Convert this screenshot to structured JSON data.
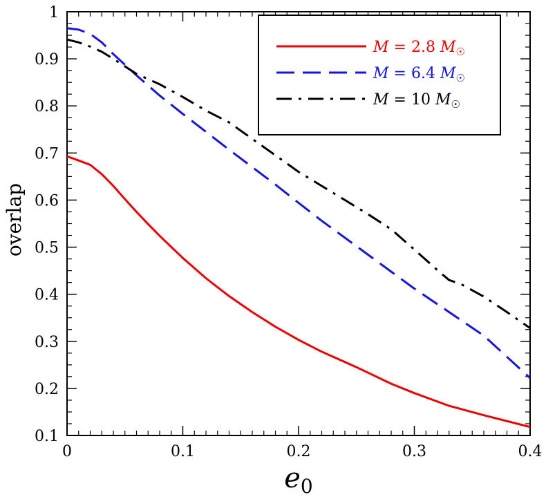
{
  "chart_data": {
    "type": "line",
    "xlabel": "e",
    "xlabel_sub": "0",
    "ylabel": "overlap",
    "xlim": [
      0,
      0.4
    ],
    "ylim": [
      0.1,
      1.0
    ],
    "xticks": [
      0,
      0.1,
      0.2,
      0.3,
      0.4
    ],
    "xtick_labels": [
      "0",
      "0.1",
      "0.2",
      "0.3",
      "0.4"
    ],
    "yticks": [
      0.1,
      0.2,
      0.3,
      0.4,
      0.5,
      0.6,
      0.7,
      0.8,
      0.9,
      1.0
    ],
    "ytick_labels": [
      "0.1",
      "0.2",
      "0.3",
      "0.4",
      "0.5",
      "0.6",
      "0.7",
      "0.8",
      "0.9",
      "1"
    ],
    "grid": false,
    "legend_position": "top-right",
    "series": [
      {
        "name": "M = 2.8 M☉",
        "legend_parts": {
          "lhs": "M",
          "eq": " = 2.8 ",
          "unit": "M",
          "sun": "☉"
        },
        "color": "#ee0000",
        "dash": "solid",
        "x": [
          0,
          0.01,
          0.02,
          0.03,
          0.04,
          0.05,
          0.06,
          0.07,
          0.08,
          0.1,
          0.12,
          0.14,
          0.16,
          0.18,
          0.2,
          0.22,
          0.25,
          0.28,
          0.3,
          0.33,
          0.36,
          0.4
        ],
        "y": [
          0.693,
          0.684,
          0.675,
          0.655,
          0.63,
          0.602,
          0.575,
          0.549,
          0.524,
          0.477,
          0.434,
          0.396,
          0.362,
          0.331,
          0.303,
          0.278,
          0.245,
          0.21,
          0.19,
          0.163,
          0.143,
          0.118
        ]
      },
      {
        "name": "M = 6.4 M☉",
        "legend_parts": {
          "lhs": "M",
          "eq": " = 6.4 ",
          "unit": "M",
          "sun": "☉"
        },
        "color": "#1515dd",
        "dash": "long-dash",
        "x": [
          0,
          0.01,
          0.02,
          0.03,
          0.04,
          0.06,
          0.08,
          0.1,
          0.12,
          0.14,
          0.16,
          0.18,
          0.2,
          0.22,
          0.25,
          0.28,
          0.3,
          0.33,
          0.36,
          0.4
        ],
        "y": [
          0.965,
          0.962,
          0.953,
          0.935,
          0.91,
          0.865,
          0.822,
          0.783,
          0.745,
          0.707,
          0.67,
          0.633,
          0.594,
          0.556,
          0.502,
          0.448,
          0.412,
          0.362,
          0.312,
          0.222
        ]
      },
      {
        "name": "M = 10 M☉",
        "legend_parts": {
          "lhs": "M",
          "eq": " = 10 ",
          "unit": "M",
          "sun": "☉"
        },
        "color": "#000000",
        "dash": "dash-dot",
        "x": [
          0,
          0.01,
          0.02,
          0.03,
          0.04,
          0.06,
          0.08,
          0.1,
          0.12,
          0.14,
          0.16,
          0.18,
          0.2,
          0.22,
          0.24,
          0.26,
          0.28,
          0.3,
          0.32,
          0.33,
          0.34,
          0.36,
          0.38,
          0.4
        ],
        "y": [
          0.941,
          0.935,
          0.926,
          0.915,
          0.9,
          0.868,
          0.846,
          0.819,
          0.79,
          0.765,
          0.73,
          0.695,
          0.66,
          0.63,
          0.6,
          0.57,
          0.538,
          0.495,
          0.451,
          0.43,
          0.422,
          0.395,
          0.362,
          0.328
        ]
      }
    ]
  }
}
